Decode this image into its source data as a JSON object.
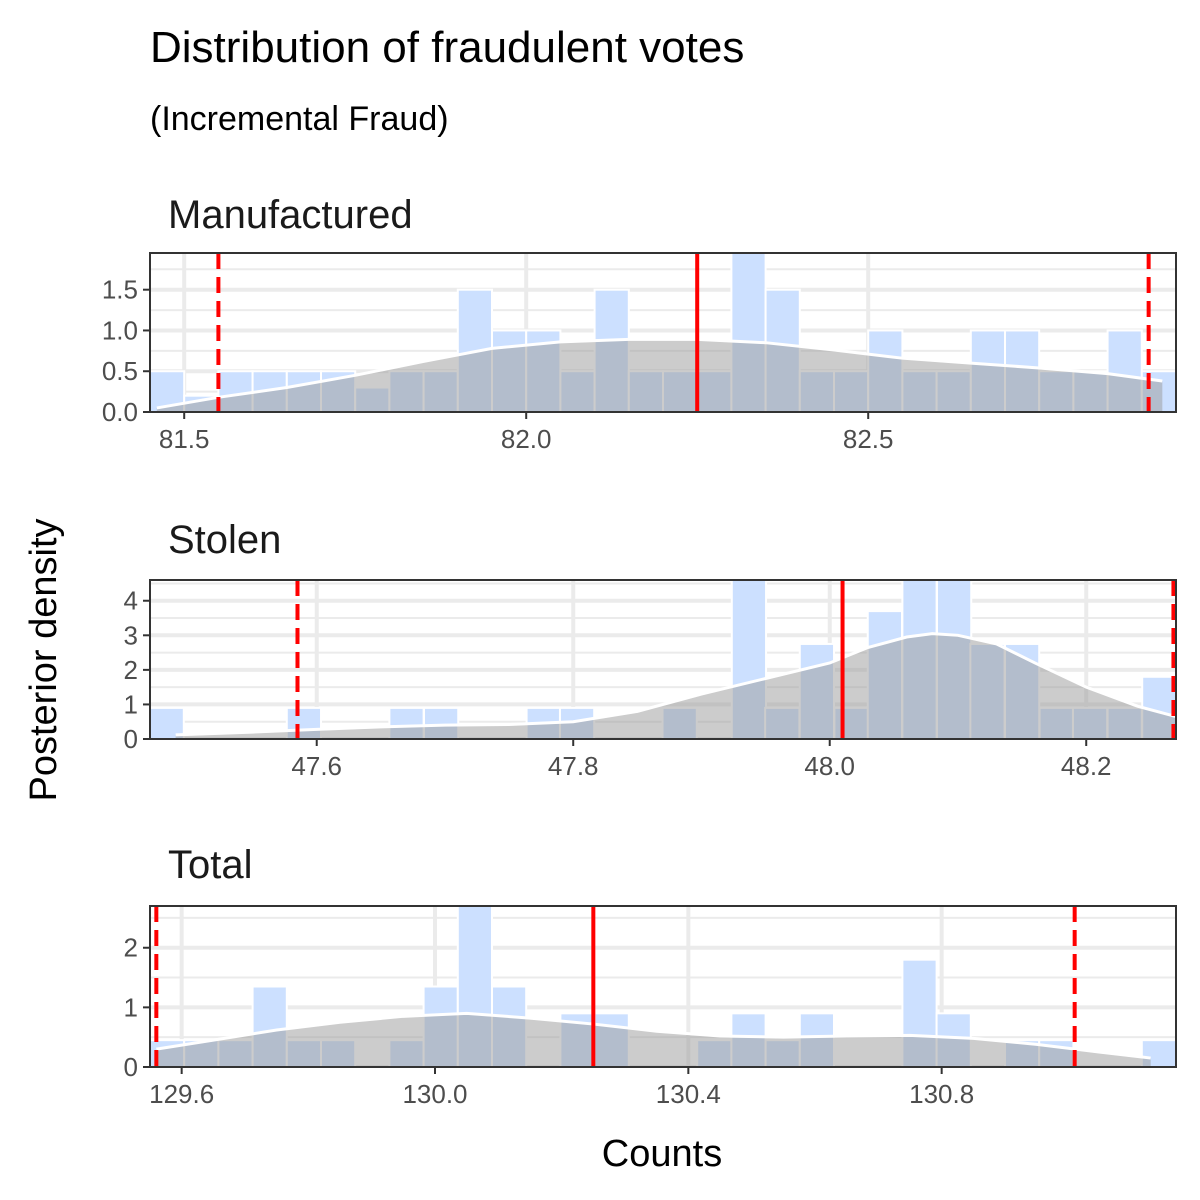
{
  "title": "Distribution of fraudulent votes",
  "subtitle": "(Incremental Fraud)",
  "xlabel": "Counts",
  "ylabel": "Posterior density",
  "colors": {
    "histogram_fill": "#cce0ff",
    "density_fill": "#999999",
    "density_line": "#ffffff",
    "grid": "#ebebeb",
    "panel_border": "#333333",
    "reference_line": "#ff0000"
  },
  "chart_data": [
    {
      "type": "histogram",
      "title": "Manufactured",
      "xlim": [
        81.45,
        82.95
      ],
      "ylim": [
        0,
        1.95
      ],
      "xticks": [
        81.5,
        82.0,
        82.5
      ],
      "xtick_labels": [
        "81.5",
        "82.0",
        "82.5"
      ],
      "yticks": [
        0,
        0.5,
        1.0,
        1.5
      ],
      "ytick_labels": [
        "0.0",
        "0.5",
        "1.0",
        "1.5"
      ],
      "bin_width": 0.05,
      "bins": [
        {
          "x": 81.475,
          "y": 0.5
        },
        {
          "x": 81.525,
          "y": 0.2
        },
        {
          "x": 81.575,
          "y": 0.5
        },
        {
          "x": 81.625,
          "y": 0.5
        },
        {
          "x": 81.675,
          "y": 0.5
        },
        {
          "x": 81.725,
          "y": 0.5
        },
        {
          "x": 81.775,
          "y": 0.3
        },
        {
          "x": 81.825,
          "y": 0.5
        },
        {
          "x": 81.875,
          "y": 0.5
        },
        {
          "x": 81.925,
          "y": 1.5
        },
        {
          "x": 81.975,
          "y": 1.0
        },
        {
          "x": 82.025,
          "y": 1.0
        },
        {
          "x": 82.075,
          "y": 0.5
        },
        {
          "x": 82.125,
          "y": 1.5
        },
        {
          "x": 82.175,
          "y": 0.5
        },
        {
          "x": 82.225,
          "y": 0.5
        },
        {
          "x": 82.275,
          "y": 0.5
        },
        {
          "x": 82.325,
          "y": 2.0
        },
        {
          "x": 82.375,
          "y": 1.5
        },
        {
          "x": 82.425,
          "y": 0.5
        },
        {
          "x": 82.475,
          "y": 0.5
        },
        {
          "x": 82.525,
          "y": 1.0
        },
        {
          "x": 82.575,
          "y": 0.5
        },
        {
          "x": 82.625,
          "y": 0.5
        },
        {
          "x": 82.675,
          "y": 1.0
        },
        {
          "x": 82.725,
          "y": 1.0
        },
        {
          "x": 82.775,
          "y": 0.5
        },
        {
          "x": 82.825,
          "y": 0.5
        },
        {
          "x": 82.875,
          "y": 1.0
        },
        {
          "x": 82.925,
          "y": 0.5
        }
      ],
      "density": {
        "x": [
          81.46,
          81.55,
          81.65,
          81.75,
          81.85,
          81.95,
          82.05,
          82.15,
          82.25,
          82.35,
          82.45,
          82.55,
          82.65,
          82.75,
          82.85,
          82.93
        ],
        "y": [
          0.05,
          0.18,
          0.3,
          0.45,
          0.62,
          0.78,
          0.86,
          0.89,
          0.89,
          0.85,
          0.76,
          0.66,
          0.6,
          0.54,
          0.47,
          0.38
        ]
      },
      "solid_line": 82.25,
      "dashed_lines": [
        81.55,
        82.91
      ]
    },
    {
      "type": "histogram",
      "title": "Stolen",
      "xlim": [
        47.47,
        48.27
      ],
      "ylim": [
        0,
        4.6
      ],
      "xticks": [
        47.6,
        47.8,
        48.0,
        48.2
      ],
      "xtick_labels": [
        "47.6",
        "47.8",
        "48.0",
        "48.2"
      ],
      "yticks": [
        0,
        1,
        2,
        3,
        4
      ],
      "ytick_labels": [
        "0",
        "1",
        "2",
        "3",
        "4"
      ],
      "bin_width": 0.0267,
      "bins": [
        {
          "x": 47.483,
          "y": 0.9
        },
        {
          "x": 47.51,
          "y": 0.0
        },
        {
          "x": 47.537,
          "y": 0.0
        },
        {
          "x": 47.563,
          "y": 0.0
        },
        {
          "x": 47.59,
          "y": 0.9
        },
        {
          "x": 47.617,
          "y": 0.0
        },
        {
          "x": 47.643,
          "y": 0.0
        },
        {
          "x": 47.67,
          "y": 0.9
        },
        {
          "x": 47.697,
          "y": 0.9
        },
        {
          "x": 47.723,
          "y": 0.0
        },
        {
          "x": 47.75,
          "y": 0.0
        },
        {
          "x": 47.777,
          "y": 0.9
        },
        {
          "x": 47.803,
          "y": 0.9
        },
        {
          "x": 47.83,
          "y": 0.0
        },
        {
          "x": 47.857,
          "y": 0.0
        },
        {
          "x": 47.883,
          "y": 0.9
        },
        {
          "x": 47.91,
          "y": 0.0
        },
        {
          "x": 47.937,
          "y": 4.6
        },
        {
          "x": 47.963,
          "y": 0.9
        },
        {
          "x": 47.99,
          "y": 2.75
        },
        {
          "x": 48.017,
          "y": 0.9
        },
        {
          "x": 48.043,
          "y": 3.7
        },
        {
          "x": 48.07,
          "y": 4.6
        },
        {
          "x": 48.097,
          "y": 4.6
        },
        {
          "x": 48.123,
          "y": 2.75
        },
        {
          "x": 48.15,
          "y": 2.75
        },
        {
          "x": 48.177,
          "y": 0.9
        },
        {
          "x": 48.203,
          "y": 0.9
        },
        {
          "x": 48.23,
          "y": 0.9
        },
        {
          "x": 48.257,
          "y": 1.8
        }
      ],
      "density": {
        "x": [
          47.49,
          47.55,
          47.6,
          47.65,
          47.7,
          47.75,
          47.8,
          47.85,
          47.9,
          47.95,
          48.0,
          48.03,
          48.06,
          48.08,
          48.1,
          48.13,
          48.16,
          48.2,
          48.24,
          48.27
        ],
        "y": [
          0.12,
          0.2,
          0.28,
          0.35,
          0.4,
          0.42,
          0.5,
          0.8,
          1.3,
          1.75,
          2.2,
          2.65,
          2.95,
          3.05,
          3.0,
          2.75,
          2.2,
          1.5,
          0.95,
          0.65
        ]
      },
      "solid_line": 48.01,
      "dashed_lines": [
        47.585,
        48.268
      ]
    },
    {
      "type": "histogram",
      "title": "Total",
      "xlim": [
        129.55,
        131.17
      ],
      "ylim": [
        0,
        2.7
      ],
      "xticks": [
        129.6,
        130.0,
        130.4,
        130.8
      ],
      "xtick_labels": [
        "129.6",
        "130.0",
        "130.4",
        "130.8"
      ],
      "yticks": [
        0,
        1,
        2
      ],
      "ytick_labels": [
        "0",
        "1",
        "2"
      ],
      "bin_width": 0.054,
      "bins": [
        {
          "x": 129.577,
          "y": 0.45
        },
        {
          "x": 129.631,
          "y": 0.45
        },
        {
          "x": 129.685,
          "y": 0.45
        },
        {
          "x": 129.739,
          "y": 1.35
        },
        {
          "x": 129.793,
          "y": 0.45
        },
        {
          "x": 129.847,
          "y": 0.45
        },
        {
          "x": 129.901,
          "y": 0.0
        },
        {
          "x": 129.955,
          "y": 0.45
        },
        {
          "x": 130.009,
          "y": 1.35
        },
        {
          "x": 130.063,
          "y": 2.7
        },
        {
          "x": 130.117,
          "y": 1.35
        },
        {
          "x": 130.171,
          "y": 0.0
        },
        {
          "x": 130.225,
          "y": 0.9
        },
        {
          "x": 130.279,
          "y": 0.9
        },
        {
          "x": 130.333,
          "y": 0.0
        },
        {
          "x": 130.387,
          "y": 0.0
        },
        {
          "x": 130.441,
          "y": 0.45
        },
        {
          "x": 130.495,
          "y": 0.9
        },
        {
          "x": 130.549,
          "y": 0.45
        },
        {
          "x": 130.603,
          "y": 0.9
        },
        {
          "x": 130.657,
          "y": 0.0
        },
        {
          "x": 130.711,
          "y": 0.0
        },
        {
          "x": 130.765,
          "y": 1.8
        },
        {
          "x": 130.819,
          "y": 0.9
        },
        {
          "x": 130.873,
          "y": 0.0
        },
        {
          "x": 130.927,
          "y": 0.45
        },
        {
          "x": 130.981,
          "y": 0.45
        },
        {
          "x": 131.035,
          "y": 0.0
        },
        {
          "x": 131.089,
          "y": 0.0
        },
        {
          "x": 131.143,
          "y": 0.45
        }
      ],
      "density": {
        "x": [
          129.56,
          129.65,
          129.75,
          129.85,
          129.95,
          130.05,
          130.15,
          130.25,
          130.35,
          130.45,
          130.55,
          130.65,
          130.75,
          130.85,
          130.95,
          131.05,
          131.13
        ],
        "y": [
          0.3,
          0.45,
          0.62,
          0.75,
          0.85,
          0.9,
          0.82,
          0.72,
          0.6,
          0.52,
          0.5,
          0.52,
          0.53,
          0.48,
          0.38,
          0.25,
          0.15
        ]
      },
      "solid_line": 130.25,
      "dashed_lines": [
        129.56,
        131.01
      ]
    }
  ]
}
